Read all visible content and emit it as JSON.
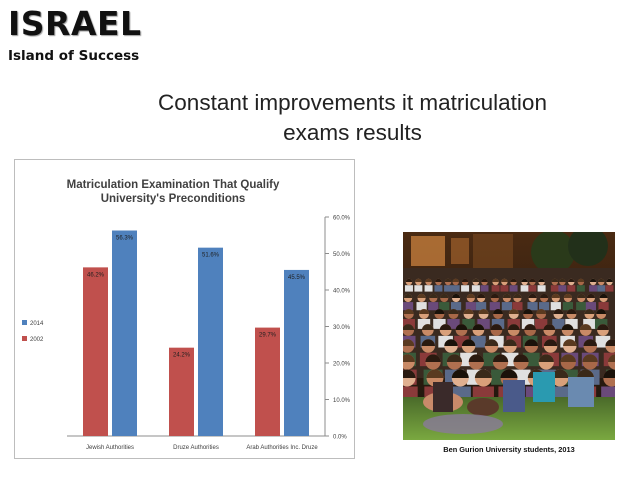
{
  "slide": {
    "logo_title": "ISRAEL",
    "logo_subtitle": "Island of Success",
    "headline_line1": "Constant improvements it matriculation",
    "headline_line2": "exams results",
    "photo_caption": "Ben Gurion University students, 2013"
  },
  "colors": {
    "series_2014": "#4f81bd",
    "series_2002": "#c0504d",
    "text": "#222222"
  },
  "chart_data": {
    "type": "bar",
    "title_line1": "Matriculation Examination That Qualify",
    "title_line2": "University's Preconditions",
    "categories": [
      "Jewish Authorities",
      "Druze Authorities",
      "Arab Authorities Inc. Druze"
    ],
    "series": [
      {
        "name": "2002",
        "values": [
          46.2,
          24.2,
          29.7
        ],
        "labels": [
          "46.2%",
          "24.2%",
          "29.7%"
        ]
      },
      {
        "name": "2014",
        "values": [
          56.3,
          51.6,
          45.5
        ],
        "labels": [
          "56.3%",
          "51.6%",
          "45.5%"
        ]
      }
    ],
    "legend": [
      "2014",
      "2002"
    ],
    "legend_position": "left",
    "y_axis_position": "right",
    "ylim": [
      0,
      60
    ],
    "yticks": [
      "0.0%",
      "10.0%",
      "20.0%",
      "30.0%",
      "40.0%",
      "50.0%",
      "60.0%"
    ],
    "grid": false
  }
}
